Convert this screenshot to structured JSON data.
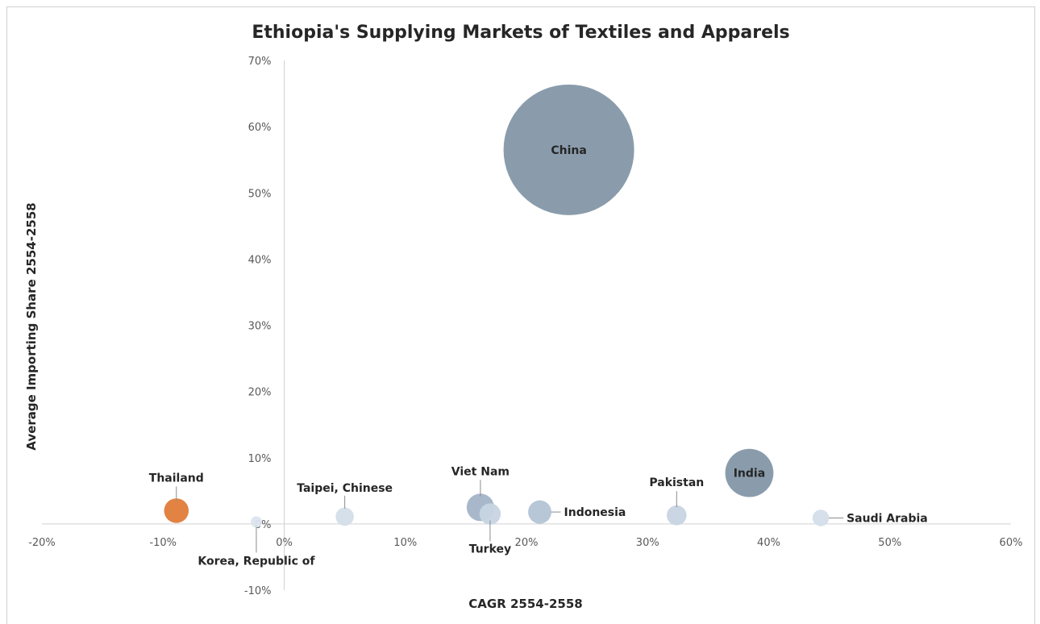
{
  "chart_data": {
    "type": "bubble",
    "title": "Ethiopia's Supplying Markets of Textiles and Apparels",
    "xlabel": "CAGR 2554-2558",
    "ylabel": "Average Importing Share 2554-2558",
    "xlim": [
      -20,
      60
    ],
    "ylim": [
      -10,
      70
    ],
    "x_ticks": [
      "-20%",
      "-10%",
      "0%",
      "10%",
      "20%",
      "30%",
      "40%",
      "50%",
      "60%"
    ],
    "y_ticks": [
      "-10%",
      "0%",
      "10%",
      "20%",
      "30%",
      "40%",
      "50%",
      "60%",
      "70%"
    ],
    "grid": false,
    "legend": "none",
    "points": [
      {
        "label": "China",
        "x": 23.5,
        "y": 56.5,
        "size": 56.5,
        "color": "#8497a8"
      },
      {
        "label": "India",
        "x": 38.4,
        "y": 7.7,
        "size": 7.7,
        "color": "#8497a8"
      },
      {
        "label": "Viet Nam",
        "x": 16.2,
        "y": 2.5,
        "size": 2.5,
        "color": "#a3b4c7"
      },
      {
        "label": "Turkey",
        "x": 17.0,
        "y": 1.5,
        "size": 1.5,
        "color": "#c7d4e2"
      },
      {
        "label": "Indonesia",
        "x": 21.1,
        "y": 1.8,
        "size": 1.8,
        "color": "#b3c4d6"
      },
      {
        "label": "Pakistan",
        "x": 32.4,
        "y": 1.3,
        "size": 1.3,
        "color": "#c7d4e2"
      },
      {
        "label": "Saudi Arabia",
        "x": 44.3,
        "y": 0.9,
        "size": 0.9,
        "color": "#d4dee9"
      },
      {
        "label": "Taipei, Chinese",
        "x": 5.0,
        "y": 1.1,
        "size": 1.1,
        "color": "#d4dee9"
      },
      {
        "label": "Korea, Republic of",
        "x": -2.3,
        "y": 0.3,
        "size": 0.3,
        "color": "#dde5ee"
      },
      {
        "label": "Thailand",
        "x": -8.9,
        "y": 2.0,
        "size": 2.0,
        "color": "#e07b39"
      }
    ]
  }
}
